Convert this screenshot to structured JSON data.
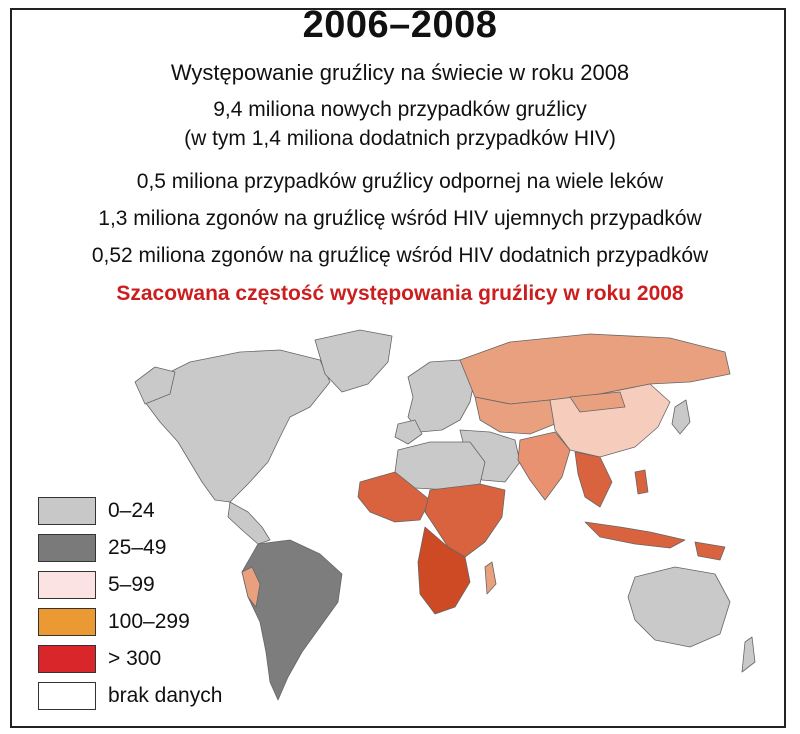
{
  "title": "2006–2008",
  "subtitle": "Występowanie gruźlicy na świecie w roku 2008",
  "facts": [
    "9,4 miliona nowych przypadków gruźlicy",
    "(w tym 1,4 miliona dodatnich przypadków HIV)",
    "0,5 miliona przypadków gruźlicy odpornej na wiele leków",
    "1,3 miliona zgonów na gruźlicę wśród HIV ujemnych przypadków",
    "0,52 miliona zgonów na gruźlicę wśród HIV dodatnich przypadków"
  ],
  "map_caption": "Szacowana częstość występowania gruźlicy w roku 2008",
  "legend": [
    {
      "label": "0–24",
      "color": "#c8c8c8"
    },
    {
      "label": "25–49",
      "color": "#7a7a7a"
    },
    {
      "label": "5–99",
      "color": "#fbe3e3"
    },
    {
      "label": "100–299",
      "color": "#eb9a33"
    },
    {
      "label": "> 300",
      "color": "#d8262a"
    },
    {
      "label": "brak danych",
      "color": "#ffffff"
    }
  ],
  "map_regions": {
    "north_america": {
      "category": "0–24",
      "color": "#c9c9c9"
    },
    "greenland": {
      "category": "0–24",
      "color": "#c9c9c9"
    },
    "south_america": {
      "category": "25–49",
      "color": "#7d7d7d"
    },
    "europe": {
      "category": "0–24",
      "color": "#c9c9c9"
    },
    "russia": {
      "category": "100–299",
      "color": "#e8a07f"
    },
    "china": {
      "category": "5–99",
      "color": "#f6cdbd"
    },
    "south_asia": {
      "category": "100–299",
      "color": "#e89272"
    },
    "southeast_asia": {
      "category": "> 300",
      "color": "#d9633e"
    },
    "africa_north": {
      "category": "0–24",
      "color": "#c9c9c9"
    },
    "africa_subsaharan": {
      "category": "> 300",
      "color": "#d4532b"
    },
    "australia": {
      "category": "0–24",
      "color": "#c9c9c9"
    }
  }
}
